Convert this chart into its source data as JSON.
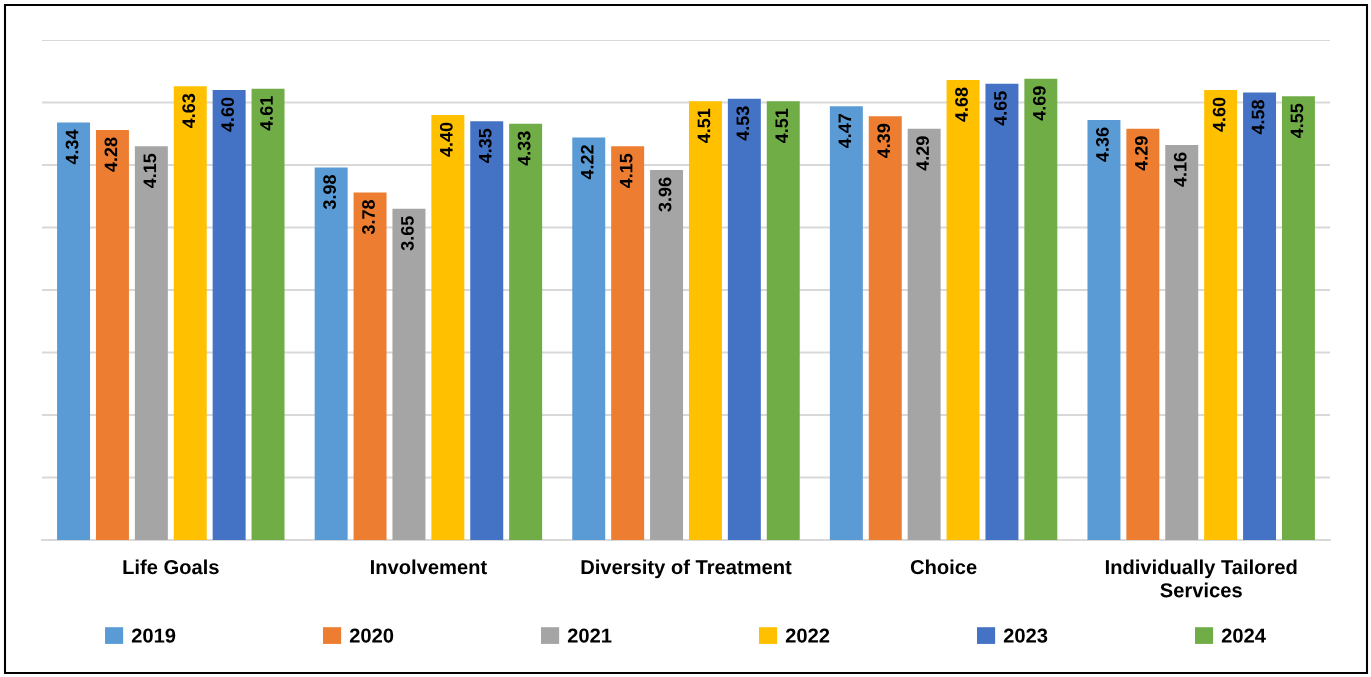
{
  "chart_data": {
    "type": "bar",
    "categories": [
      "Life Goals",
      "Involvement",
      "Diversity of Treatment",
      "Choice",
      "Individually Tailored\nServices"
    ],
    "series": [
      {
        "name": "2019",
        "color": "#5b9bd5",
        "values": [
          4.34,
          3.98,
          4.22,
          4.47,
          4.36
        ],
        "value_labels": [
          "4.34",
          "3.98",
          "4.22",
          "4.47",
          "4.36"
        ]
      },
      {
        "name": "2020",
        "color": "#ed7d31",
        "values": [
          4.28,
          3.78,
          4.15,
          4.39,
          4.29
        ],
        "value_labels": [
          "4.28",
          "3.78",
          "4.15",
          "4.39",
          "4.29"
        ]
      },
      {
        "name": "2021",
        "color": "#a5a5a5",
        "values": [
          4.15,
          3.65,
          3.96,
          4.29,
          4.16
        ],
        "value_labels": [
          "4.15",
          "3.65",
          "3.96",
          "4.29",
          "4.16"
        ]
      },
      {
        "name": "2022",
        "color": "#ffc000",
        "values": [
          4.63,
          4.4,
          4.51,
          4.68,
          4.6
        ],
        "value_labels": [
          "4.63",
          "4.40",
          "4.51",
          "4.68",
          "4.60"
        ]
      },
      {
        "name": "2023",
        "color": "#4472c4",
        "values": [
          4.6,
          4.35,
          4.53,
          4.65,
          4.58
        ],
        "value_labels": [
          "4.60",
          "4.35",
          "4.53",
          "4.65",
          "4.58"
        ]
      },
      {
        "name": "2024",
        "color": "#70ad47",
        "values": [
          4.61,
          4.33,
          4.51,
          4.69,
          4.55
        ],
        "value_labels": [
          "4.61",
          "4.33",
          "4.51",
          "4.69",
          "4.55"
        ]
      }
    ],
    "ylim": [
      1,
      5
    ],
    "yticks": [
      {
        "value": 1,
        "label": null
      },
      {
        "value": 1.5,
        "label": null
      },
      {
        "value": 2,
        "label": null
      },
      {
        "value": 2.5,
        "label": null
      },
      {
        "value": 3,
        "label": null
      },
      {
        "value": 3.5,
        "label": null
      },
      {
        "value": 4,
        "label": null
      },
      {
        "value": 4.5,
        "label": null
      },
      {
        "value": 5,
        "label": null
      }
    ],
    "tick_labels": "x",
    "grid": "y",
    "legend": "bottom"
  }
}
